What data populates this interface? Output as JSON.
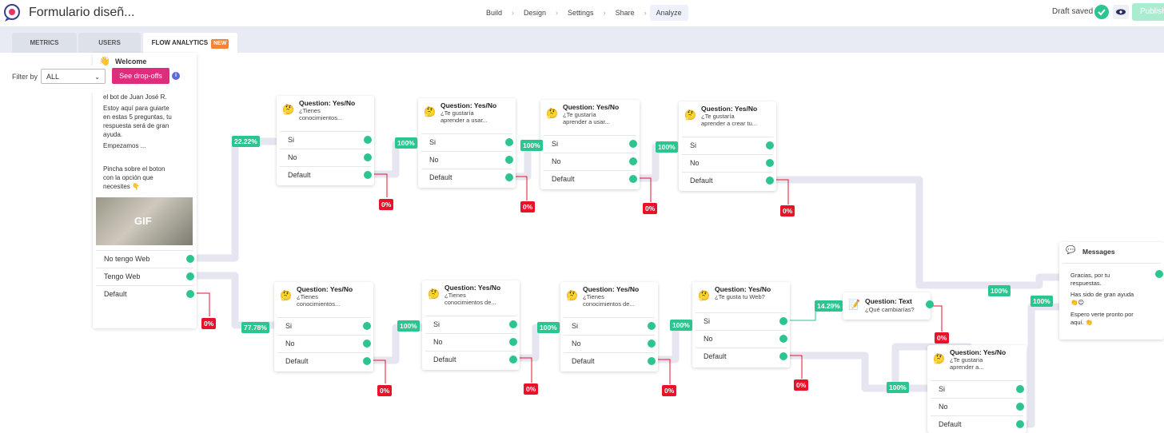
{
  "header": {
    "title": "Formulario diseñ...",
    "steps": [
      "Build",
      "Design",
      "Settings",
      "Share",
      "Analyze"
    ],
    "draft_status": "Draft saved",
    "publish_label": "Publish"
  },
  "tabs": [
    {
      "label": "METRICS"
    },
    {
      "label": "USERS"
    },
    {
      "label": "FLOW ANALYTICS",
      "badge": "NEW"
    }
  ],
  "filter": {
    "label": "Filter by",
    "value": "ALL",
    "button": "See drop-offs",
    "info": "i"
  },
  "welcome": {
    "title": "Welcome",
    "lines": [
      "el bot de Juan José R.",
      "Estoy aquí para guiarte",
      "en estas 5 preguntas, tu",
      "respuesta será de gran",
      "ayuda.",
      "Empezamos ...",
      "Pincha sobre el boton",
      "con la opción que",
      "necesites 👇"
    ],
    "gif_label": "GIF",
    "options": [
      "No tengo Web",
      "Tengo Web",
      "Default"
    ]
  },
  "yesno_options": [
    "Si",
    "No",
    "Default"
  ],
  "nodes": [
    {
      "title": "Question: Yes/No",
      "sub1": "¿Tienes",
      "sub2": "conocimientos..."
    },
    {
      "title": "Question: Yes/No",
      "sub1": "¿Te gustaría",
      "sub2": "aprender a usar..."
    },
    {
      "title": "Question: Yes/No",
      "sub1": "¿Te gustaría",
      "sub2": "aprender a usar..."
    },
    {
      "title": "Question: Yes/No",
      "sub1": "¿Te gustaría",
      "sub2": "aprender a crear tu..."
    },
    {
      "title": "Question: Yes/No",
      "sub1": "¿Tienes",
      "sub2": "conocimientos..."
    },
    {
      "title": "Question: Yes/No",
      "sub1": "¿Tienes",
      "sub2": "conocimientos de..."
    },
    {
      "title": "Question: Yes/No",
      "sub1": "¿Tienes",
      "sub2": "conocimientos de..."
    },
    {
      "title": "Question: Yes/No",
      "sub1": "¿Te gusta tu Web?",
      "sub2": ""
    },
    {
      "title": "Question: Yes/No",
      "sub1": "¿Te gustaria",
      "sub2": "aprender a..."
    }
  ],
  "text_question": {
    "title": "Question: Text",
    "sub": "¿Qué cambiarías?"
  },
  "messages": {
    "title": "Messages",
    "lines": [
      "Gracias, por tu",
      "respuestas.",
      "Has sido de gran ayuda",
      "👏😊",
      "Espero verte pronto por",
      "aquí. 👏"
    ]
  },
  "percentages": {
    "top_branch": "22.22%",
    "bottom_branch": "77.78%",
    "welcome_drop": "0%",
    "link_100": "100%",
    "drop_0": "0%",
    "text_branch": "14.29%",
    "messages_in_a": "100%",
    "messages_in_b": "100%",
    "last_in": "100%"
  },
  "colors": {
    "accent_green": "#2dc58f",
    "drop_red": "#e8132b",
    "button_pink": "#df2d7d",
    "link_gray": "#e6e6f1"
  }
}
